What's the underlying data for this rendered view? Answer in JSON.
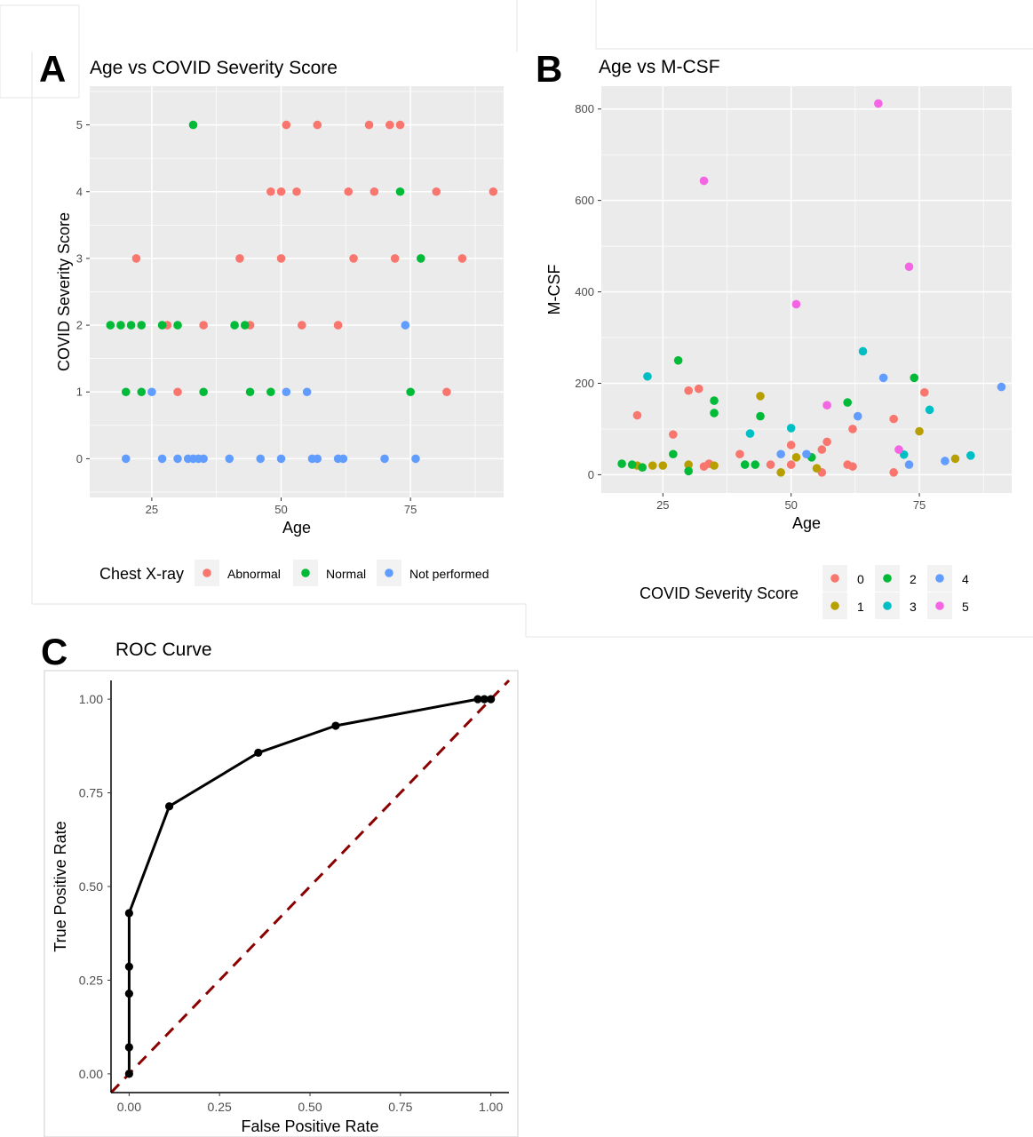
{
  "panels": [
    {
      "letter": "A"
    },
    {
      "letter": "B"
    },
    {
      "letter": "C"
    }
  ],
  "chart_data": [
    {
      "type": "scatter",
      "title": "Age vs COVID Severity Score",
      "xlabel": "Age",
      "ylabel": "COVID Severity Score",
      "xlim": [
        13,
        93
      ],
      "ylim": [
        -0.58,
        5.58
      ],
      "xticks": [
        25,
        50,
        75
      ],
      "yticks": [
        0,
        1,
        2,
        3,
        4,
        5
      ],
      "grid": true,
      "legend": {
        "title": "Chest X-ray",
        "placement": "bottom"
      },
      "series": [
        {
          "name": "Abnormal",
          "color": "#F8766D",
          "points": [
            [
              51,
              5
            ],
            [
              57,
              5
            ],
            [
              67,
              5
            ],
            [
              71,
              5
            ],
            [
              73,
              5
            ],
            [
              48,
              4
            ],
            [
              50,
              4
            ],
            [
              53,
              4
            ],
            [
              63,
              4
            ],
            [
              68,
              4
            ],
            [
              80,
              4
            ],
            [
              91,
              4
            ],
            [
              22,
              3
            ],
            [
              42,
              3
            ],
            [
              50,
              3
            ],
            [
              64,
              3
            ],
            [
              72,
              3
            ],
            [
              85,
              3
            ],
            [
              28,
              2
            ],
            [
              35,
              2
            ],
            [
              44,
              2
            ],
            [
              54,
              2
            ],
            [
              61,
              2
            ],
            [
              30,
              1
            ],
            [
              82,
              1
            ]
          ]
        },
        {
          "name": "Normal",
          "color": "#00BA38",
          "points": [
            [
              33,
              5
            ],
            [
              73,
              4
            ],
            [
              77,
              3
            ],
            [
              17,
              2
            ],
            [
              19,
              2
            ],
            [
              21,
              2
            ],
            [
              23,
              2
            ],
            [
              27,
              2
            ],
            [
              30,
              2
            ],
            [
              41,
              2
            ],
            [
              43,
              2
            ],
            [
              20,
              1
            ],
            [
              23,
              1
            ],
            [
              35,
              1
            ],
            [
              44,
              1
            ],
            [
              48,
              1
            ],
            [
              75,
              1
            ]
          ]
        },
        {
          "name": "Not performed",
          "color": "#619CFF",
          "points": [
            [
              74,
              2
            ],
            [
              25,
              1
            ],
            [
              51,
              1
            ],
            [
              55,
              1
            ],
            [
              20,
              0
            ],
            [
              27,
              0
            ],
            [
              30,
              0
            ],
            [
              32,
              0
            ],
            [
              33,
              0
            ],
            [
              34,
              0
            ],
            [
              35,
              0
            ],
            [
              40,
              0
            ],
            [
              46,
              0
            ],
            [
              50,
              0
            ],
            [
              56,
              0
            ],
            [
              57,
              0
            ],
            [
              61,
              0
            ],
            [
              62,
              0
            ],
            [
              70,
              0
            ],
            [
              76,
              0
            ]
          ]
        }
      ]
    },
    {
      "type": "scatter",
      "title": "Age vs M-CSF",
      "xlabel": "Age",
      "ylabel": "M-CSF",
      "xlim": [
        13,
        93
      ],
      "ylim": [
        -40,
        850
      ],
      "xticks": [
        25,
        50,
        75
      ],
      "yticks": [
        0,
        200,
        400,
        600,
        800
      ],
      "grid": true,
      "legend": {
        "title": "COVID Severity Score",
        "placement": "bottom"
      },
      "series": [
        {
          "name": "0",
          "color": "#F8766D",
          "points": [
            [
              20,
              130
            ],
            [
              27,
              88
            ],
            [
              30,
              184
            ],
            [
              32,
              188
            ],
            [
              33,
              18
            ],
            [
              34,
              24
            ],
            [
              40,
              45
            ],
            [
              46,
              22
            ],
            [
              50,
              22
            ],
            [
              50,
              65
            ],
            [
              56,
              55
            ],
            [
              56,
              5
            ],
            [
              57,
              72
            ],
            [
              61,
              22
            ],
            [
              62,
              18
            ],
            [
              62,
              100
            ],
            [
              70,
              122
            ],
            [
              70,
              5
            ],
            [
              76,
              180
            ]
          ]
        },
        {
          "name": "1",
          "color": "#B79F00",
          "points": [
            [
              20,
              20
            ],
            [
              23,
              20
            ],
            [
              25,
              20
            ],
            [
              30,
              22
            ],
            [
              35,
              20
            ],
            [
              44,
              172
            ],
            [
              48,
              5
            ],
            [
              51,
              38
            ],
            [
              55,
              14
            ],
            [
              75,
              95
            ],
            [
              82,
              35
            ]
          ]
        },
        {
          "name": "2",
          "color": "#00BA38",
          "points": [
            [
              17,
              24
            ],
            [
              19,
              22
            ],
            [
              21,
              16
            ],
            [
              27,
              45
            ],
            [
              28,
              250
            ],
            [
              30,
              8
            ],
            [
              35,
              162
            ],
            [
              35,
              135
            ],
            [
              41,
              22
            ],
            [
              43,
              22
            ],
            [
              44,
              128
            ],
            [
              54,
              38
            ],
            [
              61,
              158
            ],
            [
              74,
              212
            ]
          ]
        },
        {
          "name": "3",
          "color": "#00BFC4",
          "points": [
            [
              22,
              215
            ],
            [
              42,
              90
            ],
            [
              50,
              102
            ],
            [
              64,
              270
            ],
            [
              72,
              44
            ],
            [
              77,
              142
            ],
            [
              85,
              42
            ]
          ]
        },
        {
          "name": "4",
          "color": "#619CFF",
          "points": [
            [
              48,
              45
            ],
            [
              53,
              45
            ],
            [
              63,
              128
            ],
            [
              68,
              212
            ],
            [
              73,
              22
            ],
            [
              80,
              30
            ],
            [
              91,
              192
            ]
          ]
        },
        {
          "name": "5",
          "color": "#F564E3",
          "points": [
            [
              33,
              643
            ],
            [
              51,
              373
            ],
            [
              57,
              152
            ],
            [
              67,
              812
            ],
            [
              71,
              55
            ],
            [
              73,
              455
            ]
          ]
        }
      ]
    },
    {
      "type": "line",
      "title": "ROC Curve",
      "xlabel": "False Positive Rate",
      "ylabel": "True Positive Rate",
      "xlim": [
        -0.05,
        1.05
      ],
      "ylim": [
        -0.05,
        1.05
      ],
      "xticks": [
        "0.00",
        "0.25",
        "0.50",
        "0.75",
        "1.00"
      ],
      "yticks": [
        "0.00",
        "0.25",
        "0.50",
        "0.75",
        "1.00"
      ],
      "grid": false,
      "series": [
        {
          "color": "#000000",
          "points": [
            [
              0,
              0
            ],
            [
              0,
              0.071
            ],
            [
              0,
              0.214
            ],
            [
              0,
              0.286
            ],
            [
              0,
              0.429
            ],
            [
              0.111,
              0.714
            ],
            [
              0.357,
              0.857
            ],
            [
              0.571,
              0.929
            ],
            [
              0.964,
              1
            ],
            [
              0.982,
              1
            ],
            [
              1,
              1
            ]
          ]
        },
        {
          "type": "reference-diagonal",
          "color": "#8B0000",
          "dashed": true,
          "points": [
            [
              -0.05,
              -0.05
            ],
            [
              1.05,
              1.05
            ]
          ]
        }
      ]
    }
  ]
}
